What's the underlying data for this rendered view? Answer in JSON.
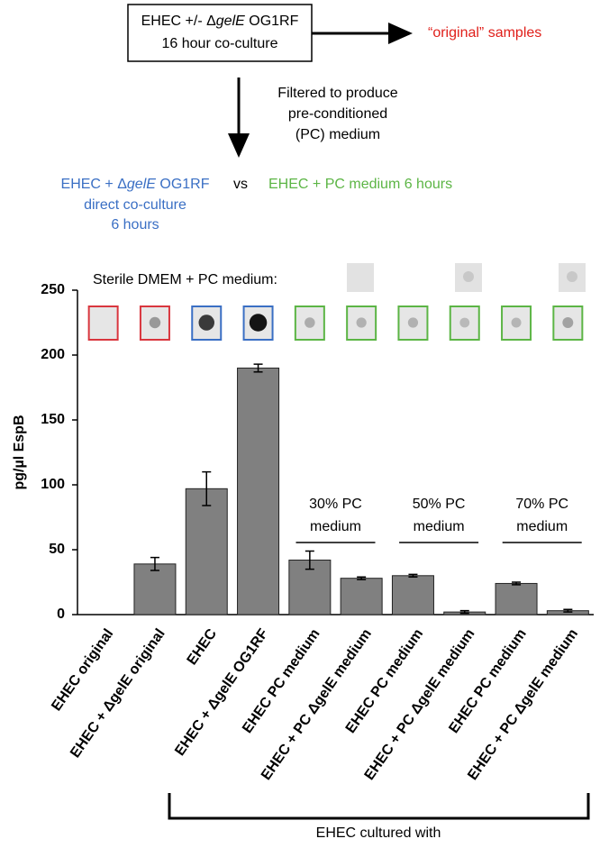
{
  "diagram": {
    "box_line1": [
      "EHEC +/- Δ",
      "gelE",
      " OG1RF"
    ],
    "box_line2": "16 hour co-culture",
    "original_label": "“original” samples",
    "filter_text": [
      "Filtered to produce",
      "pre-conditioned",
      "(PC) medium"
    ],
    "direct_label": [
      "EHEC + Δ",
      "gelE",
      " OG1RF"
    ],
    "direct_label2": "direct co-culture",
    "direct_label3": "6 hours",
    "vs": "vs",
    "pc_label": "EHEC + PC medium 6 hours",
    "sterile_label": "Sterile DMEM + PC medium:",
    "bracket_label": "EHEC cultured with"
  },
  "chart_data": {
    "type": "bar",
    "ylabel": "pg/µl EspB",
    "categories": [
      "EHEC original",
      "EHEC + ΔgelE original",
      "EHEC",
      "EHEC + ΔgelE OG1RF",
      "EHEC PC medium",
      "EHEC + PC ΔgelE medium",
      "EHEC PC medium",
      "EHEC + PC ΔgelE medium",
      "EHEC PC medium",
      "EHEC + PC ΔgelE medium"
    ],
    "values": [
      0,
      39,
      97,
      190,
      42,
      28,
      30,
      2,
      24,
      3
    ],
    "errors": [
      0,
      5,
      13,
      3,
      7,
      1,
      1,
      1,
      1,
      1
    ],
    "color": "#808080",
    "ylim": [
      0,
      250
    ],
    "yticks": [
      0,
      50,
      100,
      150,
      200,
      250
    ],
    "groups": [
      [
        "30% PC",
        "medium"
      ],
      [
        "50% PC",
        "medium"
      ],
      [
        "70% PC",
        "medium"
      ]
    ]
  }
}
